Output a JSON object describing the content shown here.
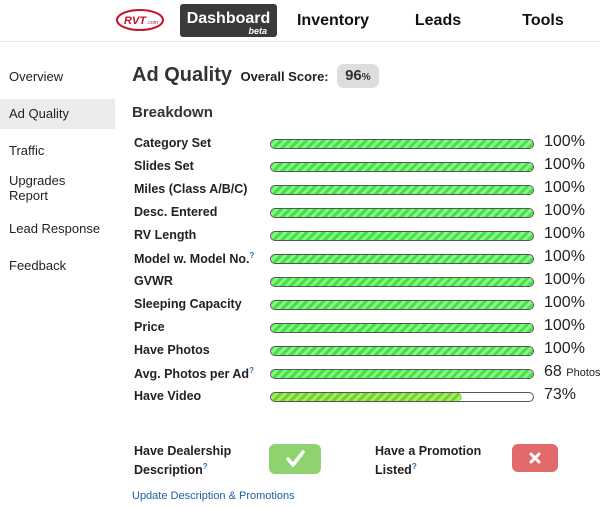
{
  "nav": {
    "logo_text": "RVT.com",
    "items": [
      {
        "label": "Dashboard",
        "badge": "beta",
        "active": true
      },
      {
        "label": "Inventory",
        "active": false
      },
      {
        "label": "Leads",
        "active": false
      },
      {
        "label": "Tools",
        "active": false
      }
    ]
  },
  "sidebar": {
    "items": [
      {
        "label": "Overview",
        "active": false
      },
      {
        "label": "Ad Quality",
        "active": true
      },
      {
        "label": "Traffic",
        "active": false
      },
      {
        "label": "Upgrades Report",
        "active": false
      },
      {
        "label": "Lead Response",
        "active": false
      },
      {
        "label": "Feedback",
        "active": false
      }
    ]
  },
  "main": {
    "title": "Ad Quality",
    "overall_label": "Overall Score:",
    "overall_score": "96",
    "overall_unit": "%",
    "breakdown_title": "Breakdown",
    "rows": [
      {
        "label": "Category Set",
        "help": "",
        "value": "100%",
        "unit": "",
        "fill": 100
      },
      {
        "label": "Slides Set",
        "help": "",
        "value": "100%",
        "unit": "",
        "fill": 100
      },
      {
        "label": "Miles (Class A/B/C)",
        "help": "",
        "value": "100%",
        "unit": "",
        "fill": 100
      },
      {
        "label": "Desc. Entered",
        "help": "",
        "value": "100%",
        "unit": "",
        "fill": 100
      },
      {
        "label": "RV Length",
        "help": "",
        "value": "100%",
        "unit": "",
        "fill": 100
      },
      {
        "label": "Model w. Model No.",
        "help": "?",
        "value": "100%",
        "unit": "",
        "fill": 100
      },
      {
        "label": "GVWR",
        "help": "",
        "value": "100%",
        "unit": "",
        "fill": 100
      },
      {
        "label": "Sleeping Capacity",
        "help": "",
        "value": "100%",
        "unit": "",
        "fill": 100
      },
      {
        "label": "Price",
        "help": "",
        "value": "100%",
        "unit": "",
        "fill": 100
      },
      {
        "label": "Have Photos",
        "help": "",
        "value": "100%",
        "unit": "",
        "fill": 100
      },
      {
        "label": "Avg. Photos per Ad",
        "help": "?",
        "value": "68",
        "unit": "Photos",
        "fill": 100
      },
      {
        "label": "Have Video",
        "help": "",
        "value": "73%",
        "unit": "",
        "fill": 73
      }
    ],
    "dealership": {
      "line1": "Have Dealership",
      "line2": "Description",
      "help": "?",
      "status_icon": "check-icon",
      "color": "#8ed36f"
    },
    "promotion": {
      "line1": "Have a Promotion",
      "line2": "Listed",
      "help": "?",
      "status_icon": "x-icon",
      "color": "#e26a6a"
    },
    "update_link": "Update Description & Promotions"
  }
}
